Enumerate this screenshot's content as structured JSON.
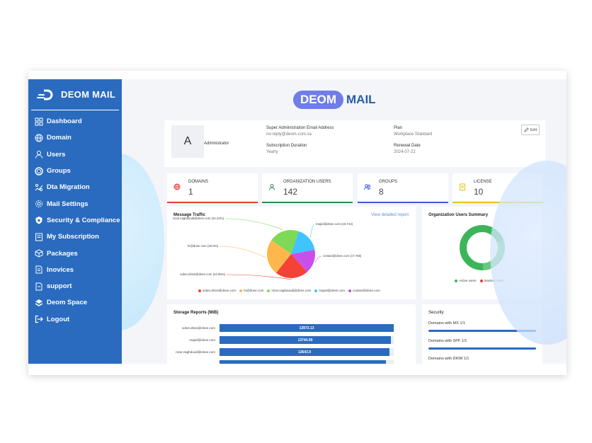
{
  "brand": {
    "name": "DEOM MAIL"
  },
  "sidebar": {
    "items": [
      {
        "label": "Dashboard",
        "icon": "dashboard-icon"
      },
      {
        "label": "Domain",
        "icon": "globe-icon"
      },
      {
        "label": "Users",
        "icon": "user-icon"
      },
      {
        "label": "Groups",
        "icon": "groups-icon"
      },
      {
        "label": "Dta Migration",
        "icon": "migration-icon"
      },
      {
        "label": "Mail Settings",
        "icon": "gear-icon"
      },
      {
        "label": "Security & Compliance",
        "icon": "shield-icon"
      },
      {
        "label": "My Subscription",
        "icon": "subscription-icon"
      },
      {
        "label": "Packages",
        "icon": "package-icon"
      },
      {
        "label": "Inovices",
        "icon": "invoice-icon"
      },
      {
        "label": "support",
        "icon": "support-icon"
      },
      {
        "label": "Deom Space",
        "icon": "layers-icon"
      },
      {
        "label": "Logout",
        "icon": "logout-icon"
      }
    ]
  },
  "header": {
    "logo_part1": "DEOM",
    "logo_part2": "MAIL"
  },
  "admin": {
    "avatar_letter": "A",
    "role": "Administrator",
    "email_label": "Super Administration Email Address",
    "email_value": "no-reply@deom.com.sa",
    "duration_label": "Subscription Duration",
    "duration_value": "Yearly",
    "plan_label": "Plan",
    "plan_value": "Workplace Standard",
    "renewal_label": "Renewal Date",
    "renewal_value": "2024-07-22",
    "edit_label": "Edit"
  },
  "stats": [
    {
      "label": "DOMAINS",
      "value": "1",
      "color": "#e53935",
      "icon": "globe-icon"
    },
    {
      "label": "ORGANIZATION USERS",
      "value": "142",
      "color": "#2e8b57",
      "icon": "user-icon"
    },
    {
      "label": "GROUPS",
      "value": "8",
      "color": "#3b5bdb",
      "icon": "groups-icon"
    },
    {
      "label": "LICENSE",
      "value": "10",
      "color": "#e0c020",
      "icon": "license-icon"
    }
  ],
  "traffic": {
    "title": "Message Traffic",
    "link": "View detailed report",
    "chart_data": {
      "type": "pie",
      "labels": [
        "sober.drissi@dnee.com (24.55%)",
        "hr@dnee.com (26.6%)",
        "nizar.zaghdoudi@dnee.com (22.24%)",
        "majed@dnee.com (18.744)",
        "contact@dnee.com (17.765)"
      ],
      "values": [
        24.55,
        26.6,
        22.24,
        18.744,
        17.765
      ],
      "colors": [
        "#f44336",
        "#ffb74d",
        "#7ed957",
        "#40c4ff",
        "#c850e8"
      ],
      "legend": [
        "sober.drissi@dnee.com",
        "hr@dnee.com",
        "nizar.zaghdoudi@dnee.com",
        "majed@dnee.com",
        "contact@dnee.com"
      ]
    }
  },
  "summary": {
    "title": "Organization Users Summary",
    "chart_data": {
      "type": "pie",
      "labels": [
        "Active users",
        "Inactive users"
      ],
      "values": [
        100,
        0
      ],
      "colors": [
        "#3cb55a",
        "#e53935"
      ]
    }
  },
  "storage": {
    "title": "Storage Reports (MiB)",
    "chart_data": {
      "type": "bar",
      "categories": [
        "sober.drissi@dnee.com",
        "majed@dnee.com",
        "nizar.zaghdoudi@dnee.com",
        ""
      ],
      "values": [
        13973.13,
        13744.99,
        13643.9,
        13400
      ],
      "value_labels": [
        "13973.13",
        "13744.99",
        "13643.9",
        ""
      ],
      "xlim": [
        0,
        14000
      ]
    }
  },
  "security": {
    "title": "Security",
    "items": [
      "Domains with MX 1/1",
      "Domains with SPF 1/1",
      "Domains with DKIM 1/1"
    ]
  }
}
